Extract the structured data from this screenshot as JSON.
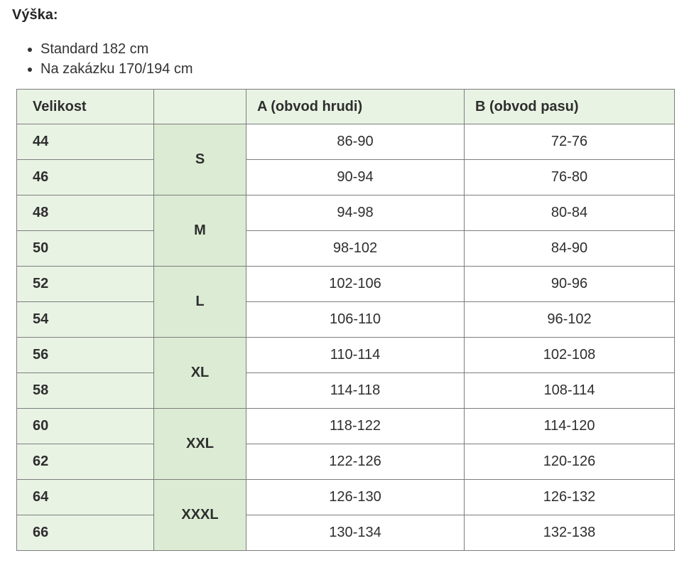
{
  "section": {
    "heading": "Výška:",
    "bullets": [
      "Standard 182 cm",
      "Na zakázku 170/194 cm"
    ]
  },
  "table": {
    "headers": [
      "Velikost",
      "",
      "A (obvod hrudi)",
      "B (obvod pasu)"
    ],
    "groups": [
      {
        "letter": "S",
        "rows": [
          {
            "size": "44",
            "chest": "86-90",
            "waist": "72-76"
          },
          {
            "size": "46",
            "chest": "90-94",
            "waist": "76-80"
          }
        ]
      },
      {
        "letter": "M",
        "rows": [
          {
            "size": "48",
            "chest": "94-98",
            "waist": "80-84"
          },
          {
            "size": "50",
            "chest": "98-102",
            "waist": "84-90"
          }
        ]
      },
      {
        "letter": "L",
        "rows": [
          {
            "size": "52",
            "chest": "102-106",
            "waist": "90-96"
          },
          {
            "size": "54",
            "chest": "106-110",
            "waist": "96-102"
          }
        ]
      },
      {
        "letter": "XL",
        "rows": [
          {
            "size": "56",
            "chest": "110-114",
            "waist": "102-108"
          },
          {
            "size": "58",
            "chest": "114-118",
            "waist": "108-114"
          }
        ]
      },
      {
        "letter": "XXL",
        "rows": [
          {
            "size": "60",
            "chest": "118-122",
            "waist": "114-120"
          },
          {
            "size": "62",
            "chest": "122-126",
            "waist": "120-126"
          }
        ]
      },
      {
        "letter": "XXXL",
        "rows": [
          {
            "size": "64",
            "chest": "126-130",
            "waist": "126-132"
          },
          {
            "size": "66",
            "chest": "130-134",
            "waist": "132-138"
          }
        ]
      }
    ],
    "colors": {
      "cell_green_light": "#e9f3e4",
      "cell_green_dark": "#dcecd4",
      "border_gray": "#7d7d7d",
      "text_dark": "#2e2e2e"
    }
  }
}
